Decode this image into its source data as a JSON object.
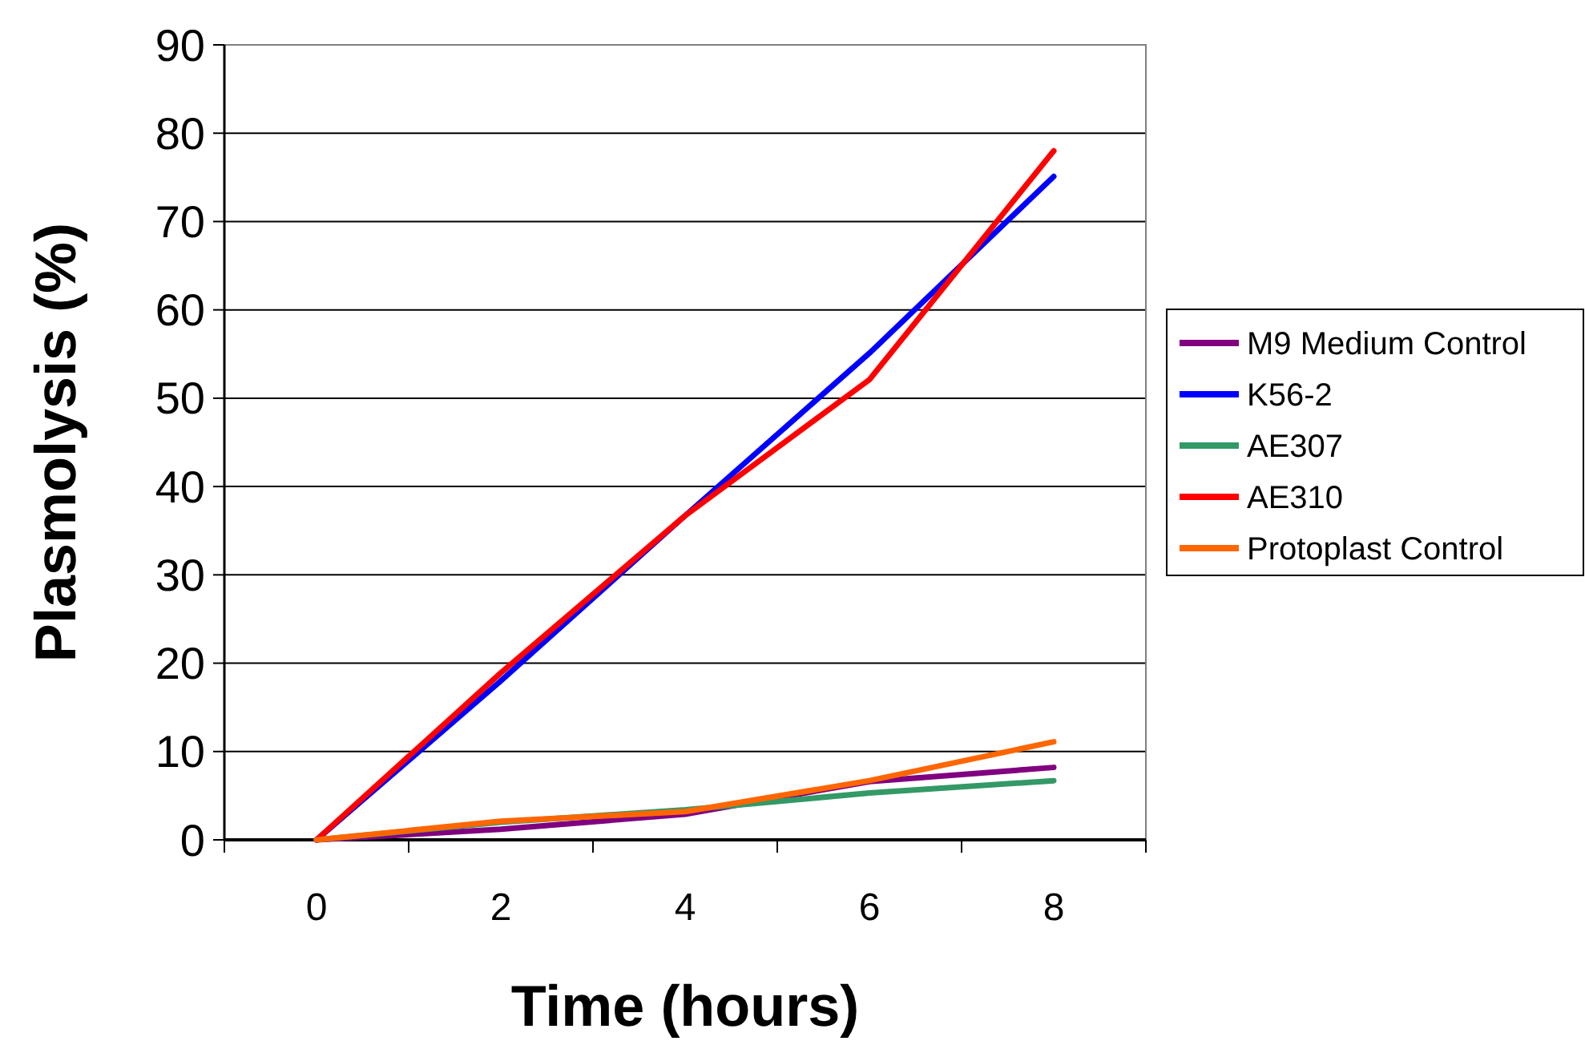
{
  "chart_data": {
    "type": "line",
    "xlabel": "Time (hours)",
    "ylabel": "Plasmolysis (%)",
    "categories": [
      "0",
      "2",
      "4",
      "6",
      "8"
    ],
    "ylim": [
      0,
      90
    ],
    "yticks": [
      0,
      10,
      20,
      30,
      40,
      50,
      60,
      70,
      80,
      90
    ],
    "grid": "y",
    "legend": "right",
    "marker": "none",
    "line_style": "solid",
    "series": [
      {
        "name": "M9 Medium Control",
        "color": "#800080",
        "values": [
          0,
          1.2,
          2.9,
          6.6,
          8.2
        ]
      },
      {
        "name": "K56-2",
        "color": "#0000ff",
        "values": [
          0,
          18,
          36.7,
          55.1,
          75.1
        ]
      },
      {
        "name": "AE307",
        "color": "#339966",
        "values": [
          0,
          2,
          3.4,
          5.3,
          6.7
        ]
      },
      {
        "name": "AE310",
        "color": "#ff0000",
        "values": [
          0,
          18.9,
          36.7,
          52.1,
          78
        ]
      },
      {
        "name": "Protoplast Control",
        "color": "#ff6600",
        "values": [
          0,
          2.1,
          3.2,
          6.7,
          11.1
        ]
      }
    ]
  }
}
